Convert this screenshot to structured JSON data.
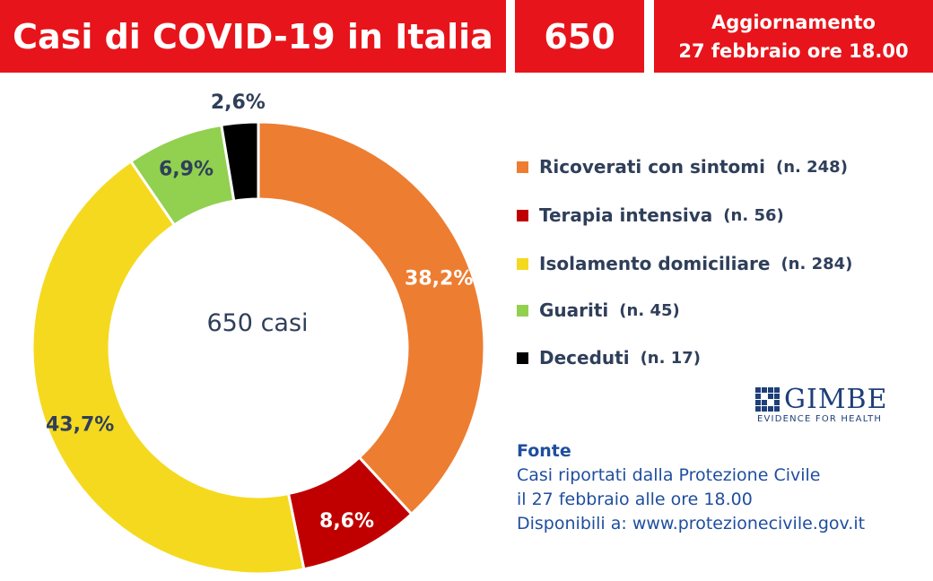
{
  "header": {
    "title": "Casi di COVID-19 in Italia",
    "count": "650",
    "update_line1": "Aggiornamento",
    "update_line2": "27 febbraio ore 18.00"
  },
  "chart_data": {
    "type": "pie",
    "center_label": "650 casi",
    "slices": [
      {
        "label": "Ricoverati con sintomi",
        "count": "(n. 248)",
        "value": 248,
        "percent_label": "38,2%",
        "color": "#ed7d31",
        "label_color": "#ffffff"
      },
      {
        "label": "Terapia intensiva",
        "count": "(n. 56)",
        "value": 56,
        "percent_label": "8,6%",
        "color": "#c00000",
        "label_color": "#ffffff"
      },
      {
        "label": "Isolamento domiciliare",
        "count": "(n. 284)",
        "value": 284,
        "percent_label": "43,7%",
        "color": "#f5d91f",
        "label_color": "#2f3f5a"
      },
      {
        "label": "Guariti",
        "count": "(n. 45)",
        "value": 45,
        "percent_label": "6,9%",
        "color": "#92d050",
        "label_color": "#2f3f5a"
      },
      {
        "label": "Deceduti",
        "count": "(n. 17)",
        "value": 17,
        "percent_label": "2,6%",
        "color": "#000000",
        "label_color": "#2f3f5a"
      }
    ]
  },
  "logo": {
    "name": "GIMBE",
    "tagline": "EVIDENCE FOR HEALTH"
  },
  "source": {
    "title": "Fonte",
    "line1": "Casi riportati dalla Protezione Civile",
    "line2": "il 27 febbraio alle ore 18.00",
    "line3": "Disponibili a: www.protezionecivile.gov.it"
  }
}
